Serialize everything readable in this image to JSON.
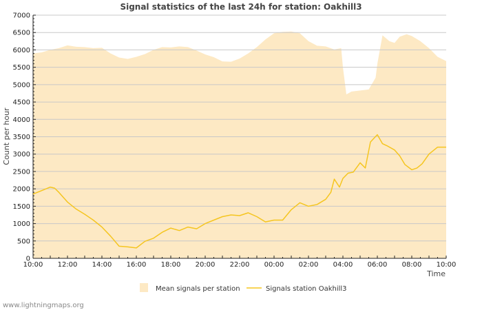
{
  "chart_data": {
    "type": "area",
    "title": "Signal statistics of the last 24h for station: Oakhill3",
    "xlabel": "Time",
    "ylabel": "Count per hour",
    "ylim": [
      0,
      7000
    ],
    "yticks": [
      0,
      500,
      1000,
      1500,
      2000,
      2500,
      3000,
      3500,
      4000,
      4500,
      5000,
      5500,
      6000,
      6500,
      7000
    ],
    "xlim": [
      0,
      24
    ],
    "xticks": [
      {
        "x": 0,
        "label": "10:00"
      },
      {
        "x": 2,
        "label": "12:00"
      },
      {
        "x": 4,
        "label": "14:00"
      },
      {
        "x": 6,
        "label": "16:00"
      },
      {
        "x": 8,
        "label": "18:00"
      },
      {
        "x": 10,
        "label": "20:00"
      },
      {
        "x": 12,
        "label": "22:00"
      },
      {
        "x": 14,
        "label": "00:00"
      },
      {
        "x": 16,
        "label": "02:00"
      },
      {
        "x": 18,
        "label": "04:00"
      },
      {
        "x": 20,
        "label": "06:00"
      },
      {
        "x": 22,
        "label": "08:00"
      },
      {
        "x": 24,
        "label": "10:00"
      }
    ],
    "series": [
      {
        "name": "Mean signals per station",
        "kind": "area",
        "color": "#fde9c4",
        "x": [
          0,
          0.5,
          1,
          1.5,
          2,
          2.5,
          3,
          3.5,
          4,
          4.5,
          5,
          5.5,
          6,
          6.5,
          7,
          7.5,
          8,
          8.5,
          9,
          9.5,
          10,
          10.5,
          11,
          11.5,
          12,
          12.5,
          13,
          13.5,
          14,
          14.5,
          15,
          15.5,
          16,
          16.5,
          17,
          17.5,
          17.9,
          18,
          18.2,
          18.5,
          19,
          19.5,
          19.9,
          20,
          20.3,
          20.7,
          21,
          21.3,
          21.7,
          22,
          22.5,
          23,
          23.5,
          24
        ],
        "values": [
          5900,
          5930,
          6000,
          6050,
          6130,
          6090,
          6080,
          6050,
          6060,
          5900,
          5780,
          5740,
          5800,
          5880,
          6000,
          6080,
          6070,
          6100,
          6080,
          5980,
          5870,
          5790,
          5670,
          5660,
          5750,
          5900,
          6080,
          6300,
          6480,
          6520,
          6530,
          6480,
          6250,
          6120,
          6100,
          6010,
          6050,
          5500,
          4720,
          4800,
          4830,
          4860,
          5200,
          5600,
          6420,
          6250,
          6200,
          6380,
          6450,
          6400,
          6250,
          6050,
          5800,
          5680
        ]
      },
      {
        "name": "Signals station Oakhill3",
        "kind": "line",
        "color": "#f5c51f",
        "x": [
          0,
          0.5,
          1,
          1.25,
          1.5,
          2,
          2.5,
          3,
          3.5,
          4,
          4.5,
          5,
          5.5,
          6,
          6.5,
          7,
          7.5,
          8,
          8.5,
          9,
          9.5,
          10,
          10.5,
          11,
          11.5,
          12,
          12.5,
          13,
          13.5,
          14,
          14.5,
          15,
          15.5,
          16,
          16.5,
          17,
          17.3,
          17.5,
          17.8,
          18,
          18.3,
          18.6,
          19,
          19.3,
          19.6,
          20,
          20.3,
          20.6,
          21,
          21.3,
          21.6,
          22,
          22.3,
          22.6,
          23,
          23.5,
          24
        ],
        "values": [
          1850,
          1950,
          2050,
          2020,
          1900,
          1620,
          1420,
          1270,
          1100,
          900,
          640,
          350,
          330,
          300,
          490,
          580,
          750,
          870,
          800,
          900,
          850,
          1000,
          1100,
          1200,
          1250,
          1230,
          1310,
          1200,
          1050,
          1100,
          1100,
          1400,
          1600,
          1500,
          1550,
          1700,
          1900,
          2280,
          2050,
          2300,
          2450,
          2480,
          2750,
          2600,
          3350,
          3560,
          3300,
          3230,
          3120,
          2950,
          2700,
          2550,
          2600,
          2720,
          3000,
          3200,
          3200
        ]
      }
    ],
    "legend": [
      "Mean signals per station",
      "Signals station Oakhill3"
    ],
    "legend_position": "bottom",
    "grid": true
  },
  "footer": "www.lightningmaps.org"
}
